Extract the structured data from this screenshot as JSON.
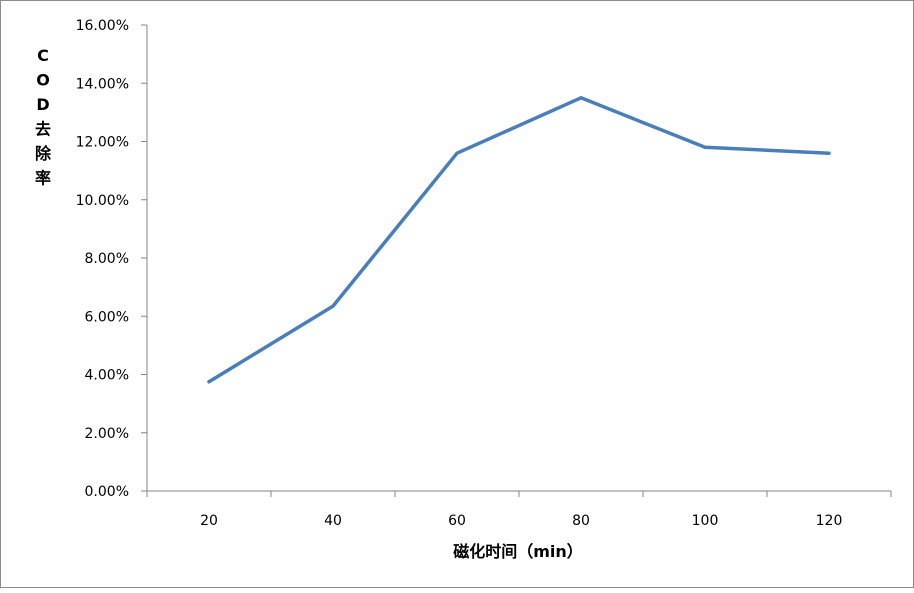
{
  "chart_data": {
    "type": "line",
    "x": [
      "20",
      "40",
      "60",
      "80",
      "100",
      "120"
    ],
    "series": [
      {
        "values": [
          0.0375,
          0.0635,
          0.116,
          0.135,
          0.118,
          0.116
        ],
        "color": "#4a7ebb"
      }
    ],
    "xlabel": "磁化时间（min）",
    "ylabel": "COD去除率",
    "ylim": [
      0,
      0.16
    ],
    "yticks": [
      "0.00%",
      "2.00%",
      "4.00%",
      "6.00%",
      "8.00%",
      "10.00%",
      "12.00%",
      "14.00%",
      "16.00%"
    ],
    "grid": false,
    "legend": "none"
  }
}
